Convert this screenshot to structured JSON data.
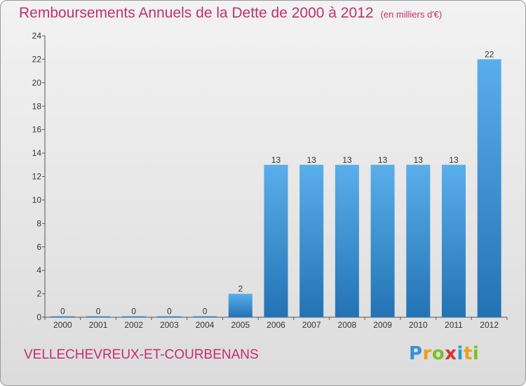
{
  "header": {
    "title": "Remboursements Annuels de la Dette de 2000 à 2012",
    "unit": "(en milliers d'€)"
  },
  "footer": {
    "commune": "VELLECHEVREUX-ET-COURBENANS",
    "brand_letters": [
      "P",
      "r",
      "o",
      "x",
      "i",
      "t",
      "i"
    ],
    "brand_colors": [
      "#3a8fd6",
      "#e8a21a",
      "#7bbf2a",
      "#d6322e",
      "#2a9ad6",
      "#e8a21a",
      "#7bbf2a"
    ]
  },
  "colors": {
    "bar_top": "#5aaeea",
    "bar_bottom": "#2373b4",
    "axis": "#555555",
    "title": "#c2306b"
  },
  "chart_data": {
    "type": "bar",
    "categories": [
      "2000",
      "2001",
      "2002",
      "2003",
      "2004",
      "2005",
      "2006",
      "2007",
      "2008",
      "2009",
      "2010",
      "2011",
      "2012"
    ],
    "values": [
      0,
      0,
      0,
      0,
      0,
      2,
      13,
      13,
      13,
      13,
      13,
      13,
      22
    ],
    "value_labels": [
      "0",
      "0",
      "0",
      "0",
      "0",
      "2",
      "13",
      "13",
      "13",
      "13",
      "13",
      "13",
      "22"
    ],
    "title": "Remboursements Annuels de la Dette de 2000 à 2012",
    "ylim": [
      0,
      24
    ],
    "yticks": [
      0,
      2,
      4,
      6,
      8,
      10,
      12,
      14,
      16,
      18,
      20,
      22,
      24
    ],
    "grid": false,
    "legend": "none"
  }
}
